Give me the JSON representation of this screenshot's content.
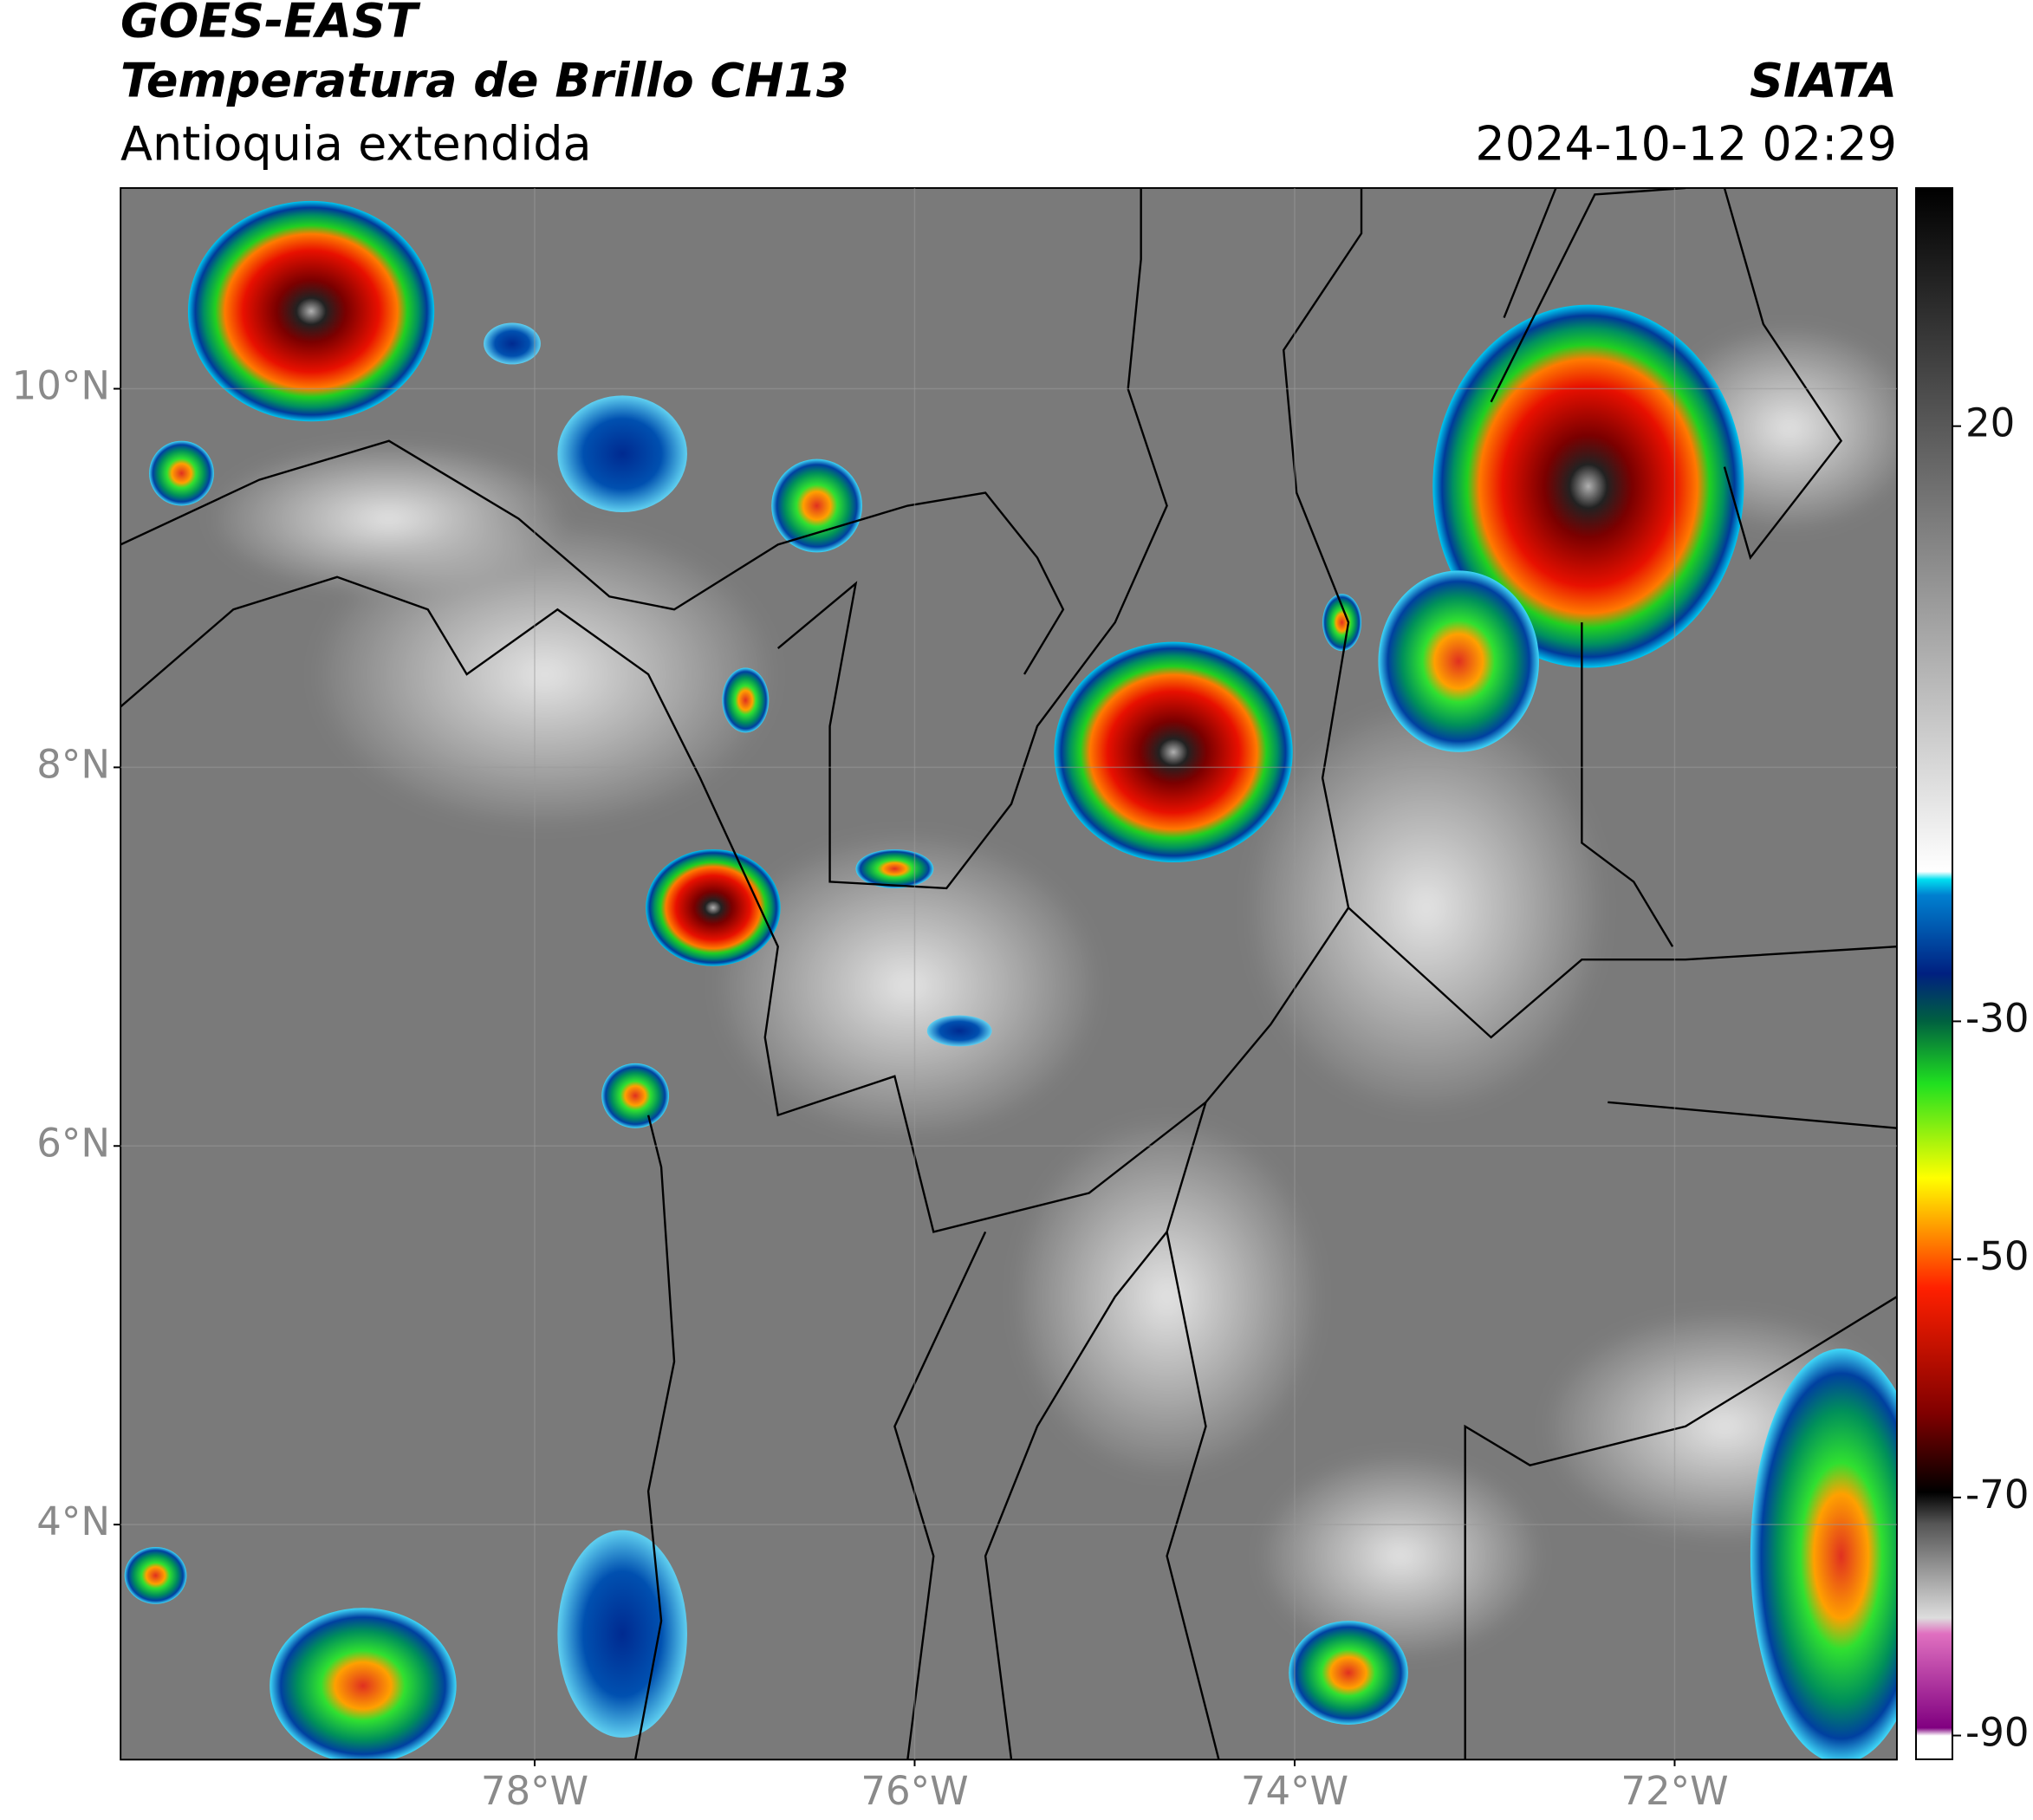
{
  "header": {
    "title": "GOES-EAST",
    "subtitle": "Temperatura de Brillo CH13",
    "region": "Antioquia extendida",
    "source": "SIATA",
    "datetime": "2024-10-12 02:29"
  },
  "map": {
    "xlim": [
      -80.18,
      -70.83
    ],
    "ylim": [
      2.76,
      11.06
    ],
    "xticks": [
      {
        "value": -78,
        "label": "78°W"
      },
      {
        "value": -76,
        "label": "76°W"
      },
      {
        "value": -74,
        "label": "74°W"
      },
      {
        "value": -72,
        "label": "72°W"
      }
    ],
    "yticks": [
      {
        "value": 4,
        "label": "4°N"
      },
      {
        "value": 6,
        "label": "6°N"
      },
      {
        "value": 8,
        "label": "8°N"
      },
      {
        "value": 10,
        "label": "10°N"
      }
    ],
    "grid": true
  },
  "colorbar": {
    "clim": [
      -92,
      40
    ],
    "ticks": [
      20,
      -30,
      -50,
      -70,
      -90
    ]
  }
}
